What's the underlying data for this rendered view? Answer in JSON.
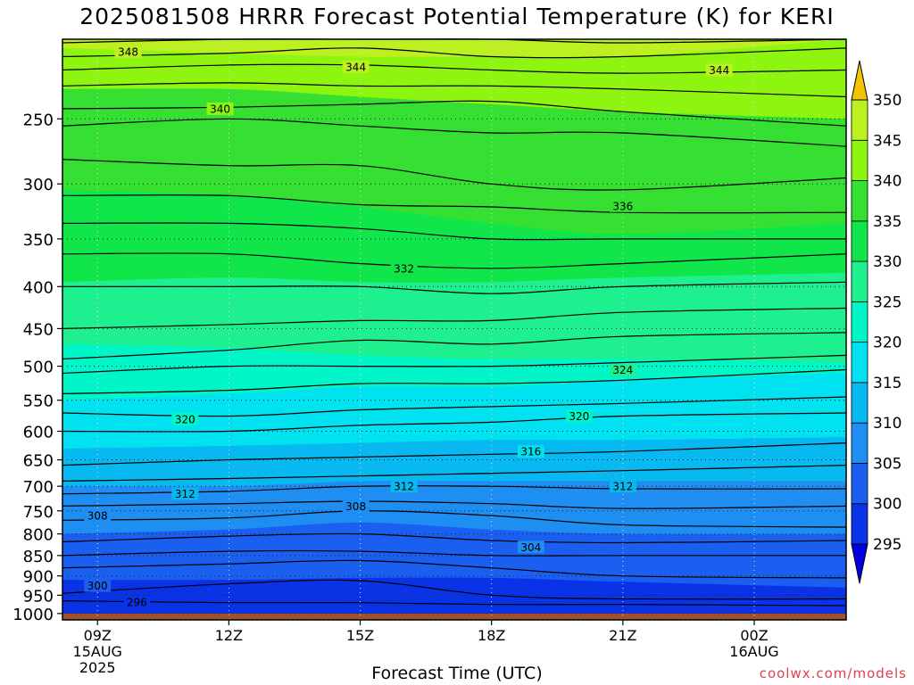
{
  "title": "2025081508 HRRR Forecast Potential Temperature (K) for KERI",
  "credit": "coolwx.com/models",
  "chart_data": {
    "type": "heatmap",
    "title": "2025081508 HRRR Forecast Potential Temperature (K) for KERI",
    "xlabel": "Forecast Time (UTC)",
    "ylabel": "",
    "variable": "Potential Temperature (K)",
    "x_range_hours": [
      8.2,
      26.1
    ],
    "y_axis": {
      "scale": "pressure (log)",
      "range": [
        1018,
        200
      ],
      "inverted": true
    },
    "x_ticks": [
      {
        "hour": 9,
        "label": "09Z",
        "sub": [
          "15AUG",
          "2025"
        ]
      },
      {
        "hour": 12,
        "label": "12Z",
        "sub": []
      },
      {
        "hour": 15,
        "label": "15Z",
        "sub": []
      },
      {
        "hour": 18,
        "label": "18Z",
        "sub": []
      },
      {
        "hour": 21,
        "label": "21Z",
        "sub": []
      },
      {
        "hour": 24,
        "label": "00Z",
        "sub": [
          "16AUG"
        ]
      }
    ],
    "y_ticks": [
      250,
      300,
      350,
      400,
      450,
      500,
      550,
      600,
      650,
      700,
      750,
      800,
      850,
      900,
      950,
      1000
    ],
    "colorbar": {
      "labels": [
        295,
        300,
        305,
        310,
        315,
        320,
        325,
        330,
        335,
        340,
        345,
        350
      ],
      "colors": [
        "#0000e0",
        "#0a32e6",
        "#1a5ff0",
        "#1f8ef2",
        "#08b8f0",
        "#00e2f0",
        "#00f6c6",
        "#1ef090",
        "#10e64a",
        "#36e032",
        "#8ef510",
        "#bcf020",
        "#ffff00",
        "#f5c400"
      ],
      "color_levels": [
        290,
        295,
        300,
        305,
        310,
        315,
        320,
        325,
        330,
        335,
        340,
        345,
        350,
        355
      ]
    },
    "ground": {
      "pressure_top": 1000,
      "color": "#a0522d"
    },
    "colorfill_boundaries": [
      {
        "theta": 300,
        "p": [
          910,
          910,
          905,
          905,
          915,
          930
        ]
      },
      {
        "theta": 305,
        "p": [
          800,
          790,
          775,
          790,
          800,
          800
        ]
      },
      {
        "theta": 310,
        "p": [
          700,
          700,
          690,
          690,
          690,
          690
        ]
      },
      {
        "theta": 315,
        "p": [
          630,
          625,
          620,
          615,
          615,
          610
        ]
      },
      {
        "theta": 320,
        "p": [
          550,
          540,
          530,
          530,
          520,
          510
        ]
      },
      {
        "theta": 325,
        "p": [
          470,
          475,
          485,
          490,
          490,
          495
        ]
      },
      {
        "theta": 330,
        "p": [
          395,
          390,
          395,
          395,
          390,
          385
        ]
      },
      {
        "theta": 335,
        "p": [
          305,
          310,
          320,
          335,
          345,
          335
        ]
      },
      {
        "theta": 340,
        "p": [
          230,
          230,
          235,
          240,
          245,
          250
        ]
      },
      {
        "theta": 345,
        "p": [
          205,
          208,
          210,
          210,
          210,
          200
        ]
      }
    ],
    "contour_lines": [
      {
        "p": [
          965,
          970,
          970,
          975,
          975,
          978
        ]
      },
      {
        "p": [
          945,
          920,
          912,
          950,
          960,
          960
        ]
      },
      {
        "p": [
          880,
          870,
          862,
          880,
          900,
          905
        ]
      },
      {
        "p": [
          850,
          840,
          840,
          850,
          850,
          850
        ]
      },
      {
        "p": [
          818,
          805,
          800,
          815,
          820,
          815
        ]
      },
      {
        "p": [
          770,
          765,
          750,
          760,
          780,
          785
        ]
      },
      {
        "p": [
          740,
          735,
          730,
          735,
          745,
          740
        ]
      },
      {
        "p": [
          715,
          710,
          700,
          700,
          705,
          705
        ]
      },
      {
        "p": [
          690,
          685,
          680,
          675,
          670,
          660
        ]
      },
      {
        "p": [
          660,
          650,
          645,
          640,
          635,
          620
        ]
      },
      {
        "p": [
          600,
          600,
          590,
          585,
          575,
          570
        ]
      },
      {
        "p": [
          570,
          575,
          565,
          560,
          555,
          545
        ]
      },
      {
        "p": [
          540,
          535,
          525,
          525,
          520,
          505
        ]
      },
      {
        "p": [
          510,
          500,
          500,
          500,
          495,
          485
        ]
      },
      {
        "p": [
          490,
          478,
          465,
          470,
          460,
          455
        ]
      },
      {
        "p": [
          450,
          445,
          440,
          440,
          430,
          425
        ]
      },
      {
        "p": [
          400,
          400,
          400,
          408,
          400,
          395
        ]
      },
      {
        "p": [
          365,
          365,
          375,
          380,
          375,
          365
        ]
      },
      {
        "p": [
          335,
          335,
          340,
          350,
          350,
          350
        ]
      },
      {
        "p": [
          310,
          310,
          318,
          320,
          325,
          325
        ]
      },
      {
        "p": [
          280,
          285,
          285,
          300,
          305,
          295
        ]
      },
      {
        "p": [
          255,
          250,
          255,
          260,
          260,
          270
        ]
      },
      {
        "p": [
          243,
          242,
          240,
          238,
          245,
          255
        ]
      },
      {
        "p": [
          228,
          226,
          228,
          228,
          230,
          235
        ]
      },
      {
        "p": [
          218,
          215,
          215,
          218,
          220,
          218
        ]
      },
      {
        "p": [
          210,
          208,
          205,
          210,
          210,
          205
        ]
      },
      {
        "p": [
          202,
          200,
          200,
          200,
          202,
          200
        ]
      }
    ],
    "contour_labels": [
      {
        "text": "348",
        "hour": 9.7,
        "p": 207
      },
      {
        "text": "344",
        "hour": 14.9,
        "p": 216
      },
      {
        "text": "344",
        "hour": 23.2,
        "p": 218
      },
      {
        "text": "340",
        "hour": 11.8,
        "p": 243
      },
      {
        "text": "336",
        "hour": 21.0,
        "p": 319
      },
      {
        "text": "332",
        "hour": 16.0,
        "p": 380
      },
      {
        "text": "324",
        "hour": 21.0,
        "p": 505
      },
      {
        "text": "320",
        "hour": 11.0,
        "p": 580
      },
      {
        "text": "320",
        "hour": 20.0,
        "p": 575
      },
      {
        "text": "316",
        "hour": 18.9,
        "p": 635
      },
      {
        "text": "312",
        "hour": 16.0,
        "p": 700
      },
      {
        "text": "312",
        "hour": 21.0,
        "p": 700
      },
      {
        "text": "312",
        "hour": 11.0,
        "p": 715
      },
      {
        "text": "308",
        "hour": 14.9,
        "p": 740
      },
      {
        "text": "308",
        "hour": 9.0,
        "p": 760
      },
      {
        "text": "304",
        "hour": 18.9,
        "p": 830
      },
      {
        "text": "300",
        "hour": 9.0,
        "p": 925
      },
      {
        "text": "296",
        "hour": 9.9,
        "p": 968
      }
    ]
  }
}
